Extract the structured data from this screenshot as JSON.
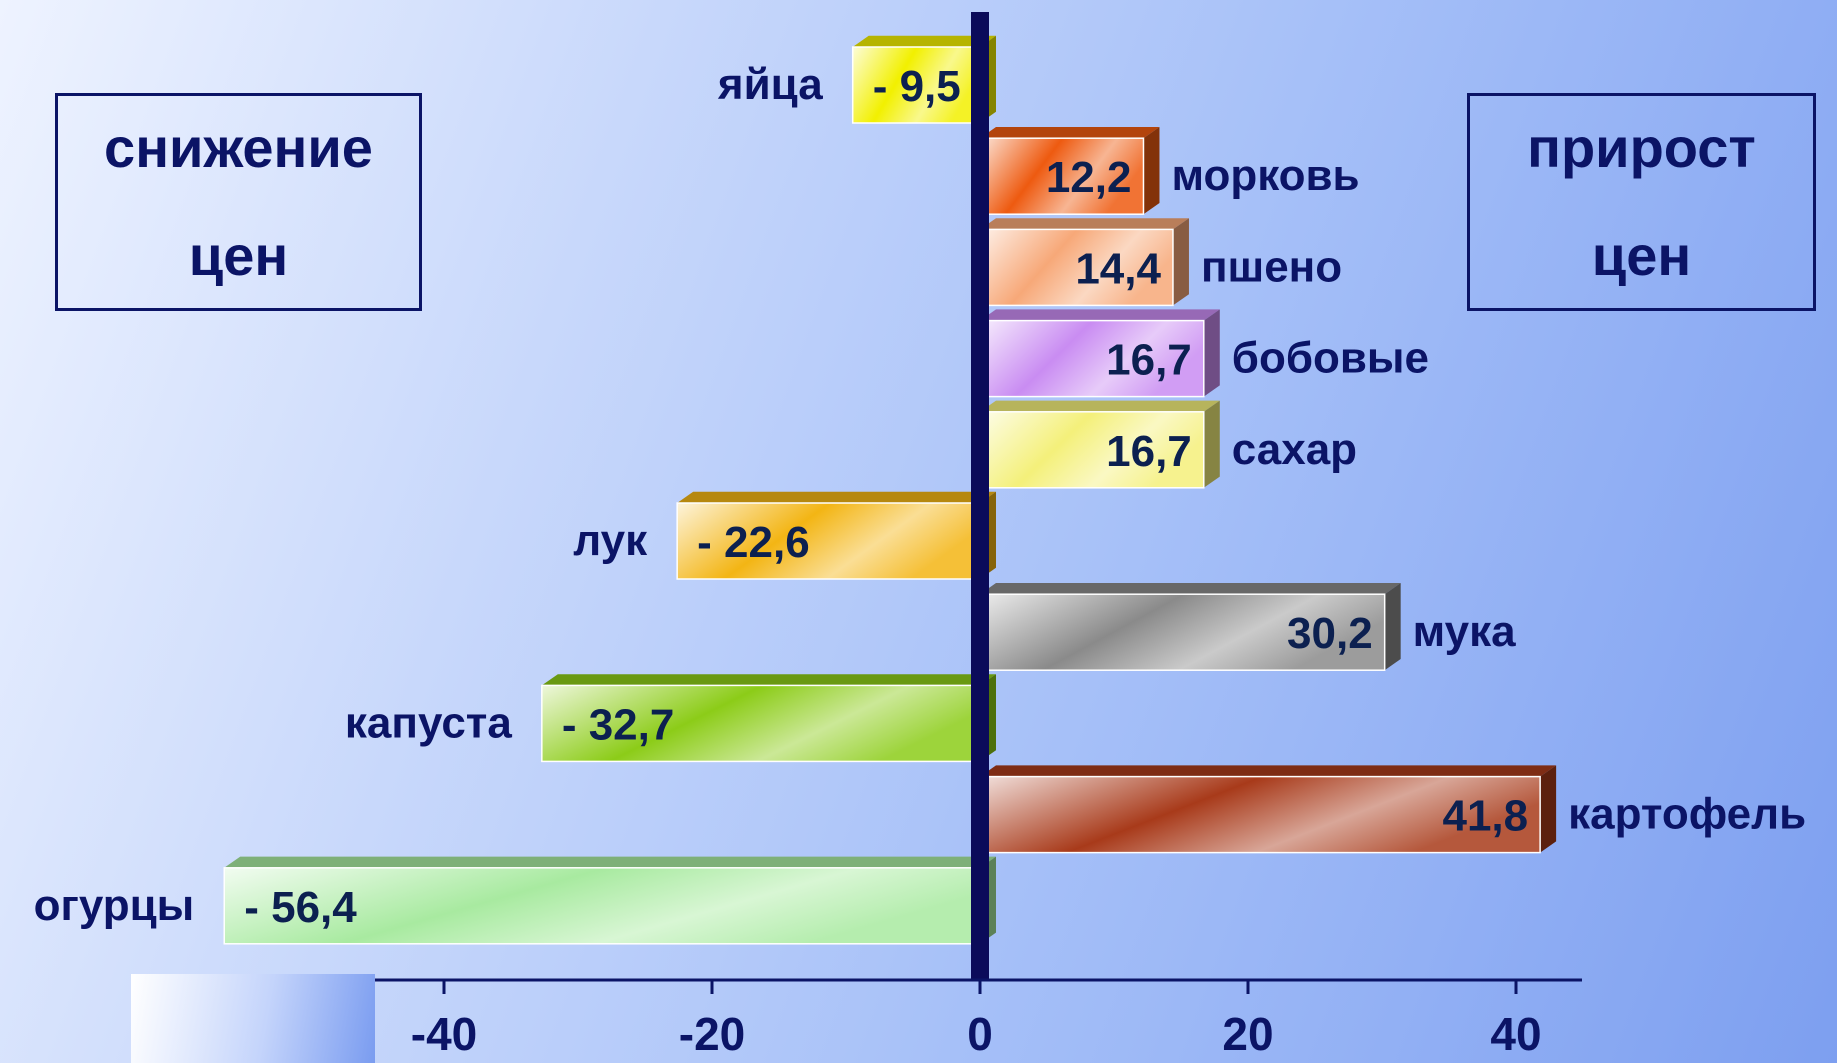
{
  "legend": {
    "decrease": {
      "line1": "снижение",
      "line2": "цен"
    },
    "increase": {
      "line1": "прирост",
      "line2": "цен"
    }
  },
  "chart_data": {
    "type": "bar",
    "orientation": "horizontal",
    "categories": [
      "яйца",
      "морковь",
      "пшено",
      "бобовые",
      "сахар",
      "лук",
      "мука",
      "капуста",
      "картофель",
      "огурцы"
    ],
    "values": [
      -9.5,
      12.2,
      14.4,
      16.7,
      16.7,
      -22.6,
      30.2,
      -32.7,
      41.8,
      -56.4
    ],
    "value_labels": [
      "- 9,5",
      "12,2",
      "14,4",
      "16,7",
      "16,7",
      "- 22,6",
      "30,2",
      "- 32,7",
      "41,8",
      "- 56,4"
    ],
    "bar_colors": [
      "#f2f000",
      "#ee5a10",
      "#f7a878",
      "#c98cf2",
      "#f4f07a",
      "#f3b514",
      "#8a8a8a",
      "#8ccc18",
      "#a83a1a",
      "#a8eaa0"
    ],
    "x_ticks": [
      "-40",
      "-20",
      "0",
      "20",
      "40"
    ],
    "x_tick_values": [
      -40,
      -20,
      0,
      20,
      40
    ],
    "xlim": [
      -57.4,
      45
    ],
    "grid": false,
    "zero_line_color": "#0b0b5a",
    "label_color": "#0b1466"
  }
}
